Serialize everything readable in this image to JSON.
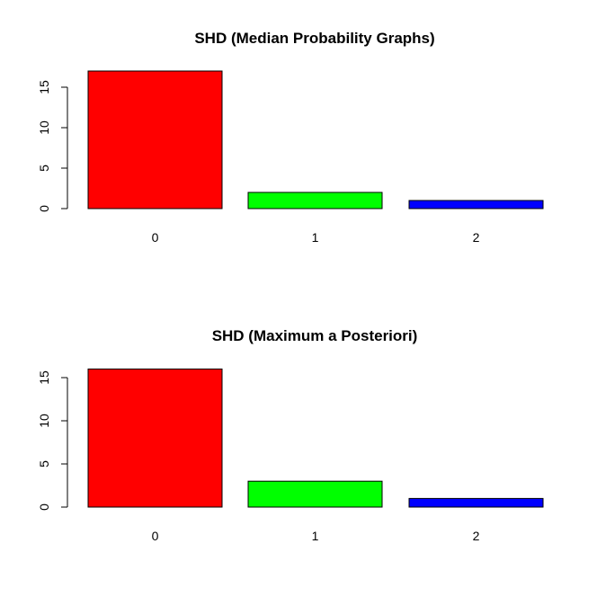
{
  "chart_data": [
    {
      "type": "bar",
      "title": "SHD (Median Probability Graphs)",
      "xlabel": "",
      "ylabel": "",
      "categories": [
        "0",
        "1",
        "2"
      ],
      "values": [
        17,
        2,
        1
      ],
      "colors": [
        "#ff0000",
        "#00ff00",
        "#0000ff"
      ],
      "yticks": [
        "0",
        "5",
        "10",
        "15"
      ],
      "ylim": [
        0,
        17
      ],
      "grid": false,
      "legend": "none"
    },
    {
      "type": "bar",
      "title": "SHD (Maximum a Posteriori)",
      "xlabel": "",
      "ylabel": "",
      "categories": [
        "0",
        "1",
        "2"
      ],
      "values": [
        16,
        3,
        1
      ],
      "colors": [
        "#ff0000",
        "#00ff00",
        "#0000ff"
      ],
      "yticks": [
        "0",
        "5",
        "10",
        "15"
      ],
      "ylim": [
        0,
        16
      ],
      "grid": false,
      "legend": "none"
    }
  ]
}
